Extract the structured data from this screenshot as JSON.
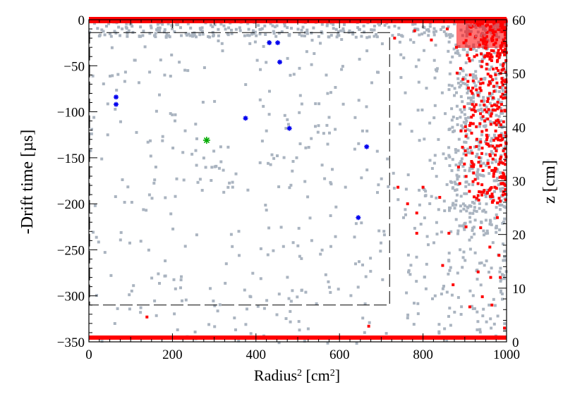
{
  "chart_data": {
    "type": "scatter",
    "xlabel": "Radius² [cm²]",
    "xlabel_parts": {
      "pre": "Radius",
      "sup1": "2",
      "mid": " [cm",
      "sup2": "2",
      "post": "]"
    },
    "ylabel": "-Drift time [µs]",
    "y2label": "z [cm]",
    "xlim": [
      0,
      1000
    ],
    "ylim": [
      -350,
      0
    ],
    "y2lim": [
      0,
      60
    ],
    "x_ticks": [
      0,
      200,
      400,
      600,
      800,
      1000
    ],
    "y_ticks": [
      0,
      -50,
      -100,
      -150,
      -200,
      -250,
      -300,
      -350
    ],
    "y2_ticks": [
      0,
      10,
      20,
      30,
      40,
      50,
      60
    ],
    "grid": false,
    "colors": {
      "gray": "#aab4c0",
      "red": "#ff0000",
      "blue": "#0000ee",
      "green": "#00aa00"
    },
    "fiducial_box": {
      "x": [
        0,
        720
      ],
      "y": [
        -310,
        -14
      ],
      "style": "dashed"
    },
    "series": [
      {
        "marker": "blue-star",
        "points": [
          [
            65,
            -84
          ],
          [
            65,
            -92
          ],
          [
            375,
            -107
          ],
          [
            432,
            -25
          ],
          [
            452,
            -25
          ],
          [
            457,
            -46
          ],
          [
            480,
            -118
          ],
          [
            645,
            -215
          ],
          [
            665,
            -138
          ]
        ]
      },
      {
        "marker": "green-star",
        "points": [
          [
            282,
            -131
          ]
        ]
      },
      {
        "marker": "red-square",
        "points": [
          [
            139,
            -323
          ],
          [
            670,
            -333
          ],
          [
            740,
            -182
          ],
          [
            763,
            -200
          ],
          [
            785,
            -210
          ],
          [
            785,
            -232
          ],
          [
            800,
            -182
          ],
          [
            840,
            -193
          ],
          [
            847,
            -267
          ],
          [
            862,
            -232
          ],
          [
            872,
            -288
          ],
          [
            885,
            -160
          ],
          [
            888,
            -178
          ],
          [
            903,
            -147
          ],
          [
            903,
            -225
          ],
          [
            912,
            -312
          ],
          [
            918,
            -80
          ],
          [
            918,
            -145
          ],
          [
            922,
            -98
          ],
          [
            932,
            -191
          ],
          [
            932,
            -274
          ],
          [
            938,
            -226
          ],
          [
            942,
            -301
          ],
          [
            948,
            -98
          ],
          [
            952,
            -120
          ],
          [
            955,
            -156
          ],
          [
            960,
            -247
          ],
          [
            962,
            -280
          ],
          [
            965,
            -310
          ],
          [
            972,
            -182
          ],
          [
            975,
            -129
          ],
          [
            978,
            -215
          ],
          [
            982,
            -256
          ],
          [
            985,
            -280
          ],
          [
            988,
            -92
          ],
          [
            992,
            -156
          ],
          [
            995,
            -335
          ],
          [
            732,
            -20
          ],
          [
            780,
            -12
          ],
          [
            820,
            -22
          ],
          [
            858,
            -10
          ],
          [
            880,
            -30
          ]
        ]
      }
    ]
  }
}
